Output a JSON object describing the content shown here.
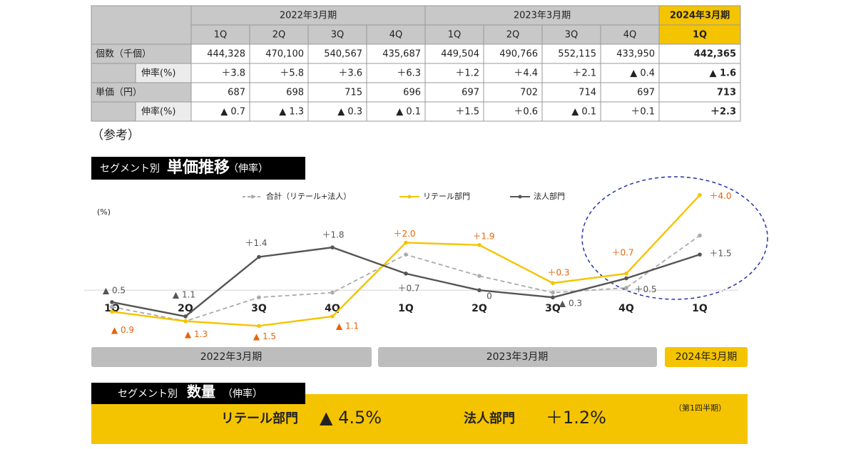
{
  "table": {
    "period_headers": [
      "2022年3月期",
      "2023年3月期",
      "2024年3月期"
    ],
    "quarters": [
      "1Q",
      "2Q",
      "3Q",
      "4Q",
      "1Q",
      "2Q",
      "3Q",
      "4Q",
      "1Q"
    ],
    "rows": [
      {
        "label": "個数（千個）",
        "cells": [
          "444,328",
          "470,100",
          "540,567",
          "435,687",
          "449,504",
          "490,766",
          "552,115",
          "433,950",
          "442,365"
        ]
      },
      {
        "label": "伸率(%)",
        "cells": [
          "＋3.8",
          "＋5.8",
          "＋3.6",
          "＋6.3",
          "＋1.2",
          "＋4.4",
          "＋2.1",
          "▲ 0.4",
          "▲ 1.6"
        ]
      },
      {
        "label": "単価（円）",
        "cells": [
          "687",
          "698",
          "715",
          "696",
          "697",
          "702",
          "714",
          "697",
          "713"
        ]
      },
      {
        "label": "伸率(%)",
        "cells": [
          "▲ 0.7",
          "▲ 1.3",
          "▲ 0.3",
          "▲ 0.1",
          "＋1.5",
          "＋0.6",
          "▲ 0.1",
          "＋0.1",
          "＋2.3"
        ]
      }
    ]
  },
  "note": "（参考）",
  "chart_data": {
    "type": "line",
    "title": [
      "セグメント別",
      "単価推移",
      "（伸率）"
    ],
    "y_label": "(%)",
    "categories": [
      "1Q",
      "2Q",
      "3Q",
      "4Q",
      "1Q",
      "2Q",
      "3Q",
      "4Q",
      "1Q"
    ],
    "period_labels": [
      "2022年3月期",
      "2023年3月期",
      "2024年3月期"
    ],
    "ylim": [
      -2,
      4.5
    ],
    "series": [
      {
        "name": "合計（リテール+法人）",
        "color": "#aaaaaa",
        "dashed": true,
        "values": [
          -0.7,
          -1.3,
          -0.3,
          -0.1,
          1.5,
          0.6,
          -0.1,
          0.1,
          2.3
        ]
      },
      {
        "name": "リテール部門",
        "color": "#f5c400",
        "label_color": "#e8630a",
        "values": [
          -0.9,
          -1.3,
          -1.5,
          -1.1,
          2.0,
          1.9,
          0.3,
          0.7,
          4.0
        ],
        "value_labels": [
          "▲ 0.9",
          "▲ 1.3",
          "▲ 1.5",
          "▲ 1.1",
          "＋2.0",
          "＋1.9",
          "＋0.3",
          "＋0.7",
          "＋4.0"
        ]
      },
      {
        "name": "法人部門",
        "color": "#555555",
        "label_color": "#555555",
        "values": [
          -0.5,
          -1.1,
          1.4,
          1.8,
          0.7,
          0,
          -0.3,
          0.5,
          1.5
        ],
        "value_labels": [
          "▲ 0.5",
          "▲ 1.1",
          "＋1.4",
          "＋1.8",
          "＋0.7",
          "0",
          "▲ 0.3",
          "＋0.5",
          "＋1.5"
        ]
      }
    ]
  },
  "quantity": {
    "title": [
      "セグメント別",
      "数量",
      "（伸率）"
    ],
    "items": [
      {
        "label": "リテール部門",
        "value": "▲ 4.5%"
      },
      {
        "label": "法人部門",
        "value": "＋1.2%"
      }
    ],
    "note": "（第1四半期）"
  }
}
